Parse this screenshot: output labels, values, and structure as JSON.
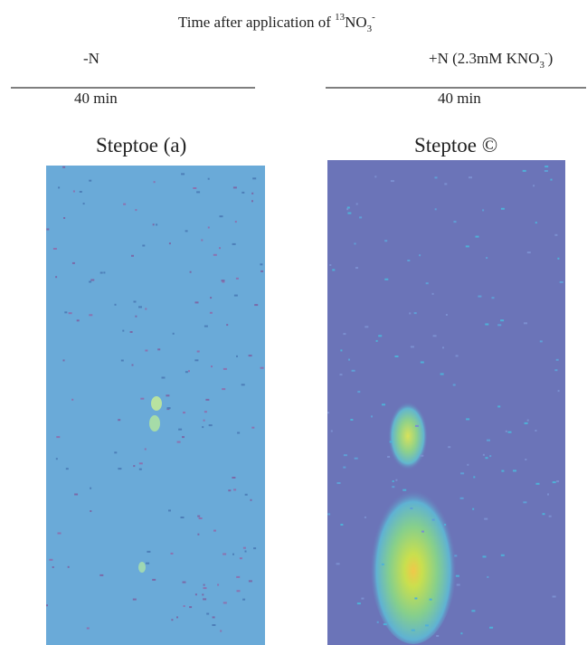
{
  "header": {
    "title": {
      "prefix": "Time after application of ",
      "isotope": "13",
      "ion": "NO",
      "ion_subscript": "3",
      "charge": "-"
    }
  },
  "panels": [
    {
      "condition": {
        "text": "-N"
      },
      "time": "40 min",
      "label": "Steptoe (a)"
    },
    {
      "condition": {
        "text": "+N (2.3mM KNO",
        "subscript": "3",
        "superscript": "-",
        "close": ")"
      },
      "time": "40 min",
      "label": "Steptoe ©"
    }
  ]
}
